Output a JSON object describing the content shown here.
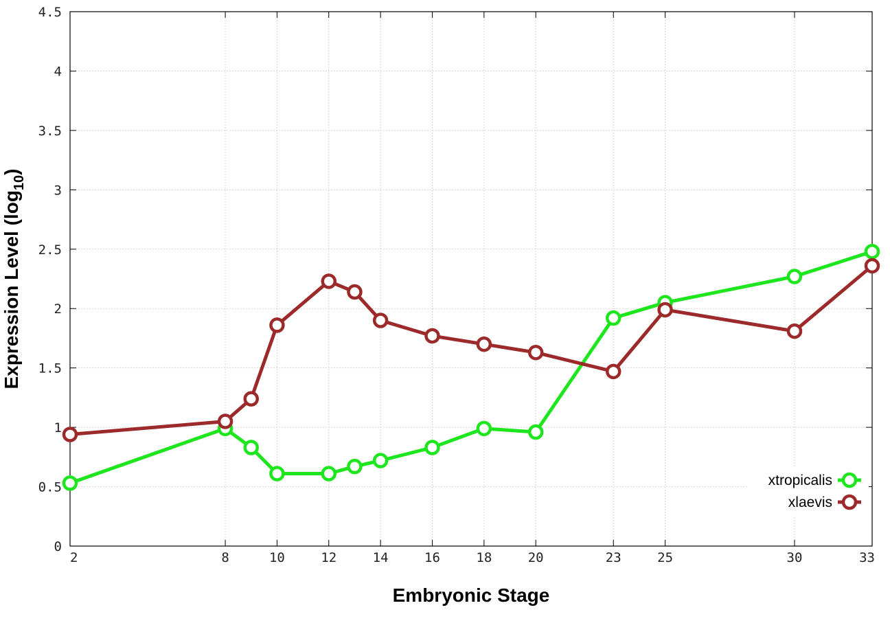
{
  "chart_data": {
    "type": "line",
    "xlabel": "Embryonic Stage",
    "ylabel_main": "Expression Level (log",
    "ylabel_sub": "10",
    "ylabel_close": ")",
    "xlim": [
      2,
      33
    ],
    "ylim": [
      0,
      4.5
    ],
    "x_ticks": [
      2,
      8,
      10,
      12,
      14,
      16,
      18,
      20,
      23,
      25,
      30,
      33
    ],
    "x_tick_labels": [
      "2",
      "8",
      "10",
      "12",
      "14",
      "16",
      "18",
      "20",
      "23",
      "25",
      "30",
      "33"
    ],
    "y_ticks": [
      0,
      0.5,
      1,
      1.5,
      2,
      2.5,
      3,
      3.5,
      4,
      4.5
    ],
    "y_tick_labels": [
      "0",
      "0.5",
      "1",
      "1.5",
      "2",
      "2.5",
      "3",
      "3.5",
      "4",
      "4.5"
    ],
    "grid": true,
    "legend_position": "bottom-right",
    "series": [
      {
        "name": "xtropicalis",
        "color": "#1ee61e",
        "x": [
          2,
          8,
          9,
          10,
          12,
          13,
          14,
          16,
          18,
          20,
          23,
          25,
          30,
          33
        ],
        "y": [
          0.53,
          0.99,
          0.83,
          0.61,
          0.61,
          0.67,
          0.72,
          0.83,
          0.99,
          0.96,
          1.92,
          2.05,
          2.27,
          2.48
        ]
      },
      {
        "name": "xlaevis",
        "color": "#9c2a2a",
        "x": [
          2,
          8,
          9,
          10,
          12,
          13,
          14,
          16,
          18,
          20,
          23,
          25,
          30,
          33
        ],
        "y": [
          0.94,
          1.05,
          1.24,
          1.86,
          2.23,
          2.14,
          1.9,
          1.77,
          1.7,
          1.63,
          1.47,
          1.99,
          1.81,
          2.36
        ]
      }
    ]
  }
}
